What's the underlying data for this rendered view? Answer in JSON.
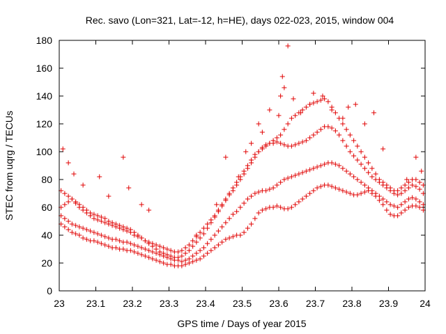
{
  "chart_data": {
    "type": "scatter",
    "title": "Rec. savo (Lon=321, Lat=-12, h=HE), days 022-023, 2015, window 004",
    "xlabel": "GPS time / Days of year 2015",
    "ylabel": "STEC from uqrg / TECUs",
    "xlim": [
      23,
      24
    ],
    "ylim": [
      0,
      180
    ],
    "xticks": [
      23,
      23.1,
      23.2,
      23.3,
      23.4,
      23.5,
      23.6,
      23.7,
      23.8,
      23.9,
      24
    ],
    "xtick_labels": [
      "23",
      "23.1",
      "23.2",
      "23.3",
      "23.4",
      "23.5",
      "23.6",
      "23.7",
      "23.8",
      "23.9",
      "24"
    ],
    "yticks": [
      0,
      20,
      40,
      60,
      80,
      100,
      120,
      140,
      160,
      180
    ],
    "ytick_labels": [
      "0",
      "20",
      "40",
      "60",
      "80",
      "100",
      "120",
      "140",
      "160",
      "180"
    ],
    "grid": false,
    "legend": "none",
    "marker": "plus",
    "color": "#e00000",
    "series": [
      {
        "x": [
          23.005,
          23.015,
          23.025,
          23.035,
          23.045,
          23.055,
          23.065,
          23.075,
          23.085,
          23.095,
          23.105,
          23.115,
          23.125,
          23.135,
          23.145,
          23.155,
          23.165,
          23.175,
          23.185,
          23.195,
          23.205,
          23.215,
          23.225,
          23.235,
          23.245,
          23.255,
          23.265,
          23.275,
          23.285,
          23.295,
          23.305,
          23.315,
          23.325,
          23.335,
          23.345,
          23.355,
          23.365,
          23.375,
          23.385,
          23.395,
          23.405,
          23.415,
          23.425,
          23.435,
          23.445,
          23.455,
          23.465,
          23.475,
          23.485,
          23.495,
          23.505,
          23.515,
          23.525,
          23.535,
          23.545,
          23.555,
          23.565,
          23.575,
          23.585,
          23.595,
          23.605,
          23.615,
          23.625,
          23.635,
          23.645,
          23.655,
          23.665,
          23.675,
          23.685,
          23.695,
          23.705,
          23.715,
          23.725,
          23.735,
          23.745,
          23.755,
          23.765,
          23.775,
          23.785,
          23.795,
          23.805,
          23.815,
          23.825,
          23.835,
          23.845,
          23.855,
          23.865,
          23.875,
          23.885,
          23.895,
          23.905,
          23.915,
          23.925,
          23.935,
          23.945,
          23.955,
          23.965,
          23.975,
          23.985,
          23.995
        ],
        "y": [
          48,
          46,
          44,
          42,
          41,
          40,
          38,
          37,
          36,
          36,
          35,
          34,
          33,
          32,
          31,
          31,
          30,
          30,
          29,
          29,
          28,
          27,
          26,
          25,
          24,
          23,
          22,
          21,
          20,
          19,
          19,
          18,
          18,
          18,
          19,
          20,
          21,
          22,
          23,
          25,
          27,
          29,
          31,
          33,
          35,
          37,
          38,
          39,
          40,
          40,
          42,
          45,
          48,
          52,
          56,
          58,
          59,
          60,
          60,
          61,
          60,
          59,
          59,
          60,
          62,
          64,
          66,
          68,
          70,
          72,
          74,
          75,
          76,
          76,
          75,
          74,
          73,
          72,
          71,
          70,
          69,
          69,
          70,
          71,
          72,
          70,
          68,
          65,
          62,
          58,
          55,
          54,
          54,
          56,
          58,
          60,
          61,
          61,
          60,
          58
        ]
      },
      {
        "x": [
          23.005,
          23.015,
          23.025,
          23.035,
          23.045,
          23.055,
          23.065,
          23.075,
          23.085,
          23.095,
          23.105,
          23.115,
          23.125,
          23.135,
          23.145,
          23.155,
          23.165,
          23.175,
          23.185,
          23.195,
          23.205,
          23.215,
          23.225,
          23.235,
          23.245,
          23.255,
          23.265,
          23.275,
          23.285,
          23.295,
          23.305,
          23.315,
          23.325,
          23.335,
          23.345,
          23.355,
          23.365,
          23.375,
          23.385,
          23.395,
          23.405,
          23.415,
          23.425,
          23.435,
          23.445,
          23.455,
          23.465,
          23.475,
          23.485,
          23.495,
          23.505,
          23.515,
          23.525,
          23.535,
          23.545,
          23.555,
          23.565,
          23.575,
          23.585,
          23.595,
          23.605,
          23.615,
          23.625,
          23.635,
          23.645,
          23.655,
          23.665,
          23.675,
          23.685,
          23.695,
          23.705,
          23.715,
          23.725,
          23.735,
          23.745,
          23.755,
          23.765,
          23.775,
          23.785,
          23.795,
          23.805,
          23.815,
          23.825,
          23.835,
          23.845,
          23.855,
          23.865,
          23.875,
          23.885,
          23.895,
          23.905,
          23.915,
          23.925,
          23.935,
          23.945,
          23.955,
          23.965,
          23.975,
          23.985,
          23.995
        ],
        "y": [
          54,
          52,
          50,
          48,
          47,
          46,
          45,
          44,
          43,
          42,
          41,
          40,
          39,
          38,
          37,
          37,
          36,
          35,
          35,
          34,
          33,
          32,
          31,
          30,
          29,
          28,
          27,
          26,
          25,
          24,
          23,
          22,
          22,
          21,
          22,
          23,
          25,
          27,
          29,
          31,
          34,
          37,
          40,
          43,
          46,
          49,
          52,
          55,
          57,
          60,
          63,
          66,
          68,
          70,
          71,
          72,
          72,
          73,
          74,
          76,
          78,
          80,
          81,
          82,
          83,
          84,
          85,
          86,
          87,
          88,
          89,
          90,
          91,
          92,
          92,
          91,
          90,
          88,
          86,
          84,
          82,
          80,
          78,
          76,
          74,
          72,
          70,
          68,
          66,
          64,
          62,
          61,
          60,
          62,
          64,
          66,
          67,
          66,
          64,
          62
        ]
      },
      {
        "x": [
          23.005,
          23.015,
          23.025,
          23.035,
          23.045,
          23.055,
          23.065,
          23.075,
          23.085,
          23.095,
          23.105,
          23.115,
          23.125,
          23.135,
          23.145,
          23.155,
          23.165,
          23.175,
          23.185,
          23.195,
          23.205,
          23.215,
          23.225,
          23.235,
          23.245,
          23.255,
          23.265,
          23.275,
          23.285,
          23.295,
          23.305,
          23.315,
          23.325,
          23.335,
          23.345,
          23.355,
          23.365,
          23.375,
          23.385,
          23.395,
          23.405,
          23.415,
          23.425,
          23.435,
          23.445,
          23.455,
          23.465,
          23.475,
          23.485,
          23.495,
          23.505,
          23.515,
          23.525,
          23.535,
          23.545,
          23.555,
          23.565,
          23.575,
          23.585,
          23.595,
          23.605,
          23.615,
          23.625,
          23.635,
          23.645,
          23.655,
          23.665,
          23.675,
          23.685,
          23.695,
          23.705,
          23.715,
          23.725,
          23.735,
          23.745,
          23.755,
          23.765,
          23.775,
          23.785,
          23.795,
          23.805,
          23.815,
          23.825,
          23.835,
          23.845,
          23.855,
          23.865,
          23.875,
          23.885,
          23.895,
          23.905,
          23.915,
          23.925,
          23.935,
          23.945,
          23.955,
          23.965,
          23.975,
          23.985,
          23.995
        ],
        "y": [
          72,
          70,
          68,
          66,
          64,
          62,
          60,
          58,
          56,
          55,
          54,
          53,
          52,
          50,
          49,
          48,
          47,
          46,
          45,
          44,
          42,
          40,
          38,
          36,
          34,
          32,
          30,
          28,
          27,
          26,
          25,
          24,
          24,
          25,
          27,
          29,
          32,
          35,
          38,
          41,
          45,
          49,
          53,
          57,
          61,
          65,
          69,
          72,
          76,
          80,
          84,
          88,
          92,
          96,
          100,
          103,
          105,
          106,
          106,
          107,
          106,
          105,
          104,
          104,
          105,
          106,
          107,
          108,
          110,
          112,
          114,
          116,
          118,
          118,
          117,
          115,
          112,
          108,
          104,
          100,
          97,
          94,
          91,
          88,
          85,
          82,
          80,
          78,
          76,
          74,
          72,
          70,
          69,
          70,
          72,
          74,
          76,
          75,
          73,
          70
        ]
      },
      {
        "x": [
          23.005,
          23.015,
          23.025,
          23.035,
          23.045,
          23.055,
          23.065,
          23.075,
          23.085,
          23.095,
          23.105,
          23.115,
          23.125,
          23.135,
          23.145,
          23.155,
          23.165,
          23.175,
          23.185,
          23.195,
          23.205,
          23.215,
          23.225,
          23.235,
          23.245,
          23.255,
          23.265,
          23.275,
          23.285,
          23.295,
          23.305,
          23.315,
          23.325,
          23.335,
          23.345,
          23.355,
          23.365,
          23.375,
          23.385,
          23.395,
          23.405,
          23.415,
          23.425,
          23.435,
          23.445,
          23.455,
          23.465,
          23.475,
          23.485,
          23.495,
          23.505,
          23.515,
          23.525,
          23.535,
          23.545,
          23.555,
          23.565,
          23.575,
          23.585,
          23.595,
          23.605,
          23.615,
          23.625,
          23.635,
          23.645,
          23.655,
          23.665,
          23.675,
          23.685,
          23.695,
          23.705,
          23.715,
          23.725,
          23.735,
          23.745,
          23.755,
          23.765,
          23.775,
          23.785,
          23.795,
          23.805,
          23.815,
          23.825,
          23.835,
          23.845,
          23.855,
          23.865,
          23.875,
          23.885,
          23.895,
          23.905,
          23.915,
          23.925,
          23.935,
          23.945,
          23.955,
          23.965,
          23.975,
          23.985,
          23.995
        ],
        "y": [
          60,
          62,
          64,
          66,
          63,
          60,
          58,
          56,
          54,
          52,
          51,
          50,
          49,
          48,
          47,
          46,
          45,
          44,
          43,
          42,
          40,
          39,
          38,
          36,
          35,
          34,
          33,
          32,
          31,
          30,
          29,
          28,
          28,
          29,
          31,
          33,
          36,
          39,
          42,
          45,
          48,
          51,
          54,
          58,
          62,
          66,
          70,
          74,
          78,
          82,
          86,
          90,
          94,
          98,
          100,
          102,
          104,
          106,
          108,
          110,
          112,
          116,
          120,
          124,
          126,
          128,
          130,
          132,
          134,
          135,
          136,
          137,
          138,
          136,
          132,
          128,
          124,
          120,
          116,
          112,
          108,
          104,
          100,
          96,
          92,
          88,
          84,
          80,
          78,
          76,
          74,
          72,
          72,
          74,
          76,
          78,
          80,
          80,
          78,
          76
        ]
      },
      {
        "x": [
          23.01,
          23.025,
          23.04,
          23.065,
          23.11,
          23.135,
          23.175,
          23.19,
          23.225,
          23.245,
          23.375,
          23.43,
          23.455,
          23.49,
          23.51,
          23.525,
          23.545,
          23.555,
          23.575,
          23.6,
          23.605,
          23.61,
          23.615,
          23.625,
          23.64,
          23.66,
          23.685,
          23.695,
          23.72,
          23.745,
          23.775,
          23.79,
          23.81,
          23.835,
          23.86,
          23.885,
          23.95,
          23.975,
          23.99
        ],
        "y": [
          102,
          92,
          84,
          76,
          82,
          68,
          96,
          74,
          62,
          58,
          40,
          62,
          96,
          82,
          100,
          106,
          120,
          114,
          130,
          126,
          140,
          154,
          146,
          176,
          138,
          128,
          134,
          142,
          140,
          130,
          124,
          132,
          134,
          120,
          128,
          102,
          80,
          96,
          86
        ]
      }
    ]
  }
}
